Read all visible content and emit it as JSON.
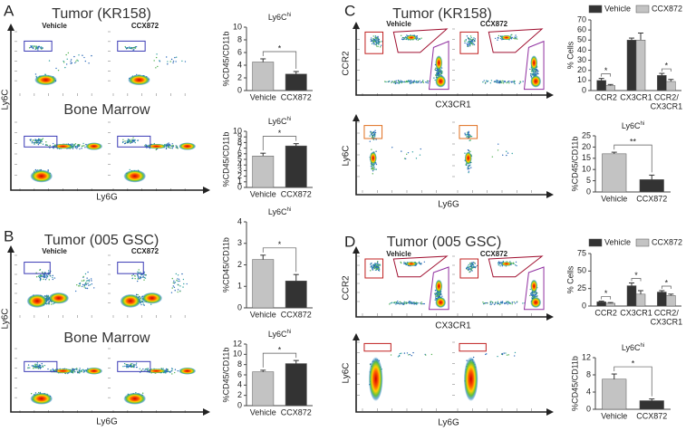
{
  "figure": {
    "A": {
      "letter": "A",
      "title": "Tumor (KR158)",
      "subtitle": "Bone Marrow",
      "conditions": [
        "Vehicle",
        "CCX872"
      ],
      "y_axis": "Ly6C",
      "x_axis": "Ly6G"
    },
    "B": {
      "letter": "B",
      "title": "Tumor (005 GSC)",
      "subtitle": "Bone Marrow",
      "conditions": [
        "Vehicle",
        "CCX872"
      ],
      "y_axis": "Ly6C",
      "x_axis": "Ly6G"
    },
    "C": {
      "letter": "C",
      "title": "Tumor (KR158)",
      "conditions": [
        "Vehicle",
        "CCX872"
      ],
      "y_axis_top": "CCR2",
      "x_axis_top": "CX3CR1",
      "y_axis_bottom": "Ly6C",
      "x_axis_bottom": "Ly6G"
    },
    "D": {
      "letter": "D",
      "title": "Tumor (005 GSC)",
      "conditions": [
        "Vehicle",
        "CCX872"
      ],
      "y_axis_top": "CCR2",
      "x_axis_top": "CX3CR1",
      "y_axis_bottom": "Ly6C",
      "x_axis_bottom": "Ly6G"
    }
  },
  "chart_data": [
    {
      "type": "bar",
      "title": {
        "base": "Ly6C",
        "sup": "hi"
      },
      "ylabel": "%CD45/CD11b",
      "categories": [
        "Vehicle",
        "CCX872"
      ],
      "values": [
        4.5,
        2.6
      ],
      "errors": [
        0.5,
        0.4
      ],
      "colors": [
        "#c3c3c3",
        "#333333"
      ],
      "ylim": [
        0,
        10
      ],
      "yticks": [
        0,
        2,
        4,
        6,
        8,
        10
      ],
      "annotation": "*"
    },
    {
      "type": "bar",
      "title": {
        "base": "Ly6C",
        "sup": "hi"
      },
      "ylabel": "%CD45/CD11b",
      "categories": [
        "Vehicle",
        "CCX872"
      ],
      "values": [
        5.6,
        7.4
      ],
      "errors": [
        0.5,
        0.4
      ],
      "colors": [
        "#c3c3c3",
        "#333333"
      ],
      "ylim": [
        0,
        10
      ],
      "yticks": [
        0,
        1,
        2,
        3,
        4,
        5,
        6,
        7,
        8,
        9,
        10
      ],
      "annotation": "*"
    },
    {
      "type": "bar",
      "title": {
        "base": "Ly6C",
        "sup": "hi"
      },
      "ylabel": "%CD45/CD11b",
      "categories": [
        "Vehicle",
        "CCX872"
      ],
      "values": [
        2.25,
        1.25
      ],
      "errors": [
        0.2,
        0.3
      ],
      "colors": [
        "#c3c3c3",
        "#333333"
      ],
      "ylim": [
        0,
        4
      ],
      "yticks": [
        0,
        1,
        2,
        3,
        4
      ],
      "annotation": "*"
    },
    {
      "type": "bar",
      "title": {
        "base": "Ly6C",
        "sup": "hi"
      },
      "ylabel": "%CD45/CD11b",
      "categories": [
        "Vehicle",
        "CCX872"
      ],
      "values": [
        6.6,
        8.2
      ],
      "errors": [
        0.3,
        0.6
      ],
      "colors": [
        "#c3c3c3",
        "#333333"
      ],
      "ylim": [
        0,
        12
      ],
      "yticks": [
        0,
        2,
        4,
        6,
        8,
        10,
        12
      ],
      "annotation": "*"
    },
    {
      "type": "grouped_bar",
      "ylabel": "% Cells",
      "categories": [
        [
          "CCR2"
        ],
        [
          "CX3CR1"
        ],
        [
          "CCR2/",
          "CX3CR1"
        ]
      ],
      "series": [
        {
          "name": "Vehicle",
          "color": "#333333",
          "values": [
            10,
            50,
            15
          ],
          "errors": [
            2,
            2,
            2
          ]
        },
        {
          "name": "CCX872",
          "color": "#c3c3c3",
          "values": [
            5,
            50,
            9
          ],
          "errors": [
            1,
            7,
            2
          ]
        }
      ],
      "ylim": [
        0,
        70
      ],
      "yticks": [
        0,
        10,
        20,
        30,
        40,
        50,
        60,
        70
      ],
      "annotations": [
        "*",
        null,
        "*"
      ]
    },
    {
      "type": "bar",
      "title": {
        "base": "Ly6C",
        "sup": "hi"
      },
      "ylabel": "%CD45/CD11b",
      "categories": [
        "Vehicle",
        "CCX872"
      ],
      "values": [
        17,
        5.5
      ],
      "errors": [
        0.7,
        2
      ],
      "colors": [
        "#c3c3c3",
        "#333333"
      ],
      "ylim": [
        0,
        25
      ],
      "yticks": [
        0,
        5,
        10,
        15,
        20,
        25
      ],
      "annotation": "**"
    },
    {
      "type": "grouped_bar",
      "ylabel": "% Cells",
      "categories": [
        [
          "CCR2"
        ],
        [
          "CX3CR1"
        ],
        [
          "CCR2/",
          "CX3CR1"
        ]
      ],
      "series": [
        {
          "name": "Vehicle",
          "color": "#333333",
          "values": [
            6,
            29,
            20
          ],
          "errors": [
            1,
            4,
            2
          ]
        },
        {
          "name": "CCX872",
          "color": "#c3c3c3",
          "values": [
            4,
            17,
            15
          ],
          "errors": [
            1,
            5,
            2
          ]
        }
      ],
      "ylim": [
        0,
        75
      ],
      "yticks": [
        0,
        25,
        50,
        75
      ],
      "annotations": [
        "*",
        "*",
        "*"
      ]
    },
    {
      "type": "bar",
      "title": {
        "base": "Ly6C",
        "sup": "hi"
      },
      "ylabel": "%CD45/CD11b",
      "categories": [
        "Vehicle",
        "CCX872"
      ],
      "values": [
        7,
        2
      ],
      "errors": [
        1.2,
        0.4
      ],
      "colors": [
        "#c3c3c3",
        "#333333"
      ],
      "ylim": [
        0,
        12
      ],
      "yticks": [
        0,
        4,
        8,
        12
      ],
      "annotation": "*"
    }
  ]
}
